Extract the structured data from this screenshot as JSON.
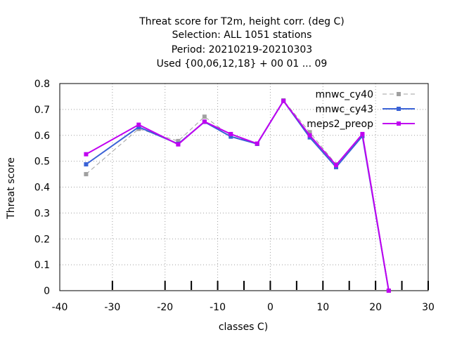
{
  "chart_data": {
    "type": "line",
    "title_lines": [
      "Threat score  for T2m, height corr. (deg C)",
      "Selection: ALL    1051 stations",
      "Period: 20210219-20210303",
      "Used {00,06,12,18} + 00 01 ... 09"
    ],
    "xlabel": "classes C)",
    "ylabel": "Threat score",
    "xlim": [
      -40,
      30
    ],
    "ylim": [
      0,
      0.8
    ],
    "xticks": [
      -40,
      -30,
      -20,
      -10,
      0,
      10,
      20,
      30
    ],
    "yticks": [
      0,
      0.1,
      0.2,
      0.3,
      0.4,
      0.5,
      0.6,
      0.7,
      0.8
    ],
    "yticklabels": [
      "0",
      "0.1",
      "0.2",
      "0.3",
      "0.4",
      "0.5",
      "0.6",
      "0.7",
      "0.8"
    ],
    "grid": true,
    "legend_position": "top-right",
    "minor_marks_x": [
      -30,
      -20,
      -15,
      -10,
      -5,
      0,
      5,
      10,
      15,
      20,
      25,
      30
    ],
    "x": [
      -35,
      -25,
      -17.5,
      -12.5,
      -7.5,
      -2.5,
      2.5,
      7.5,
      12.5,
      17.5,
      22.5
    ],
    "series": [
      {
        "name": "mnwc_cy40",
        "color": "#a0a0a0",
        "dashed": true,
        "values": [
          0.45,
          0.625,
          0.578,
          0.672,
          0.598,
          0.567,
          0.735,
          0.612,
          0.488,
          0.598,
          0.0
        ]
      },
      {
        "name": "mnwc_cy43",
        "color": "#3a62d6",
        "dashed": false,
        "values": [
          0.488,
          0.632,
          0.567,
          0.652,
          0.595,
          0.567,
          0.733,
          0.592,
          0.477,
          0.597,
          0.0
        ]
      },
      {
        "name": "meps2_preop",
        "color": "#c000f0",
        "dashed": false,
        "values": [
          0.527,
          0.641,
          0.565,
          0.653,
          0.605,
          0.568,
          0.733,
          0.6,
          0.485,
          0.605,
          0.0
        ]
      }
    ]
  }
}
